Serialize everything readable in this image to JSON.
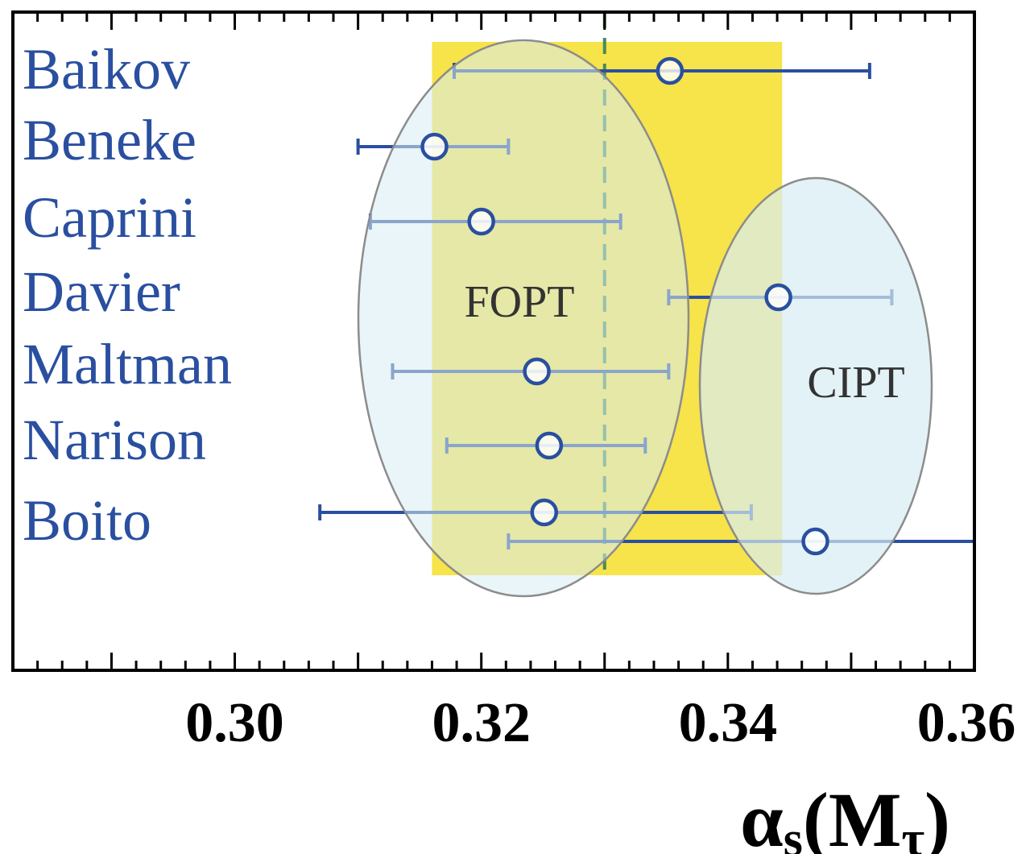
{
  "chart_data": {
    "type": "scatter",
    "title": "",
    "xlabel": "αs(Mτ)",
    "xlabel_parts": {
      "main": "α",
      "sub1": "s",
      "paren_open": "(",
      "M": "M",
      "sub2": "τ",
      "paren_close": ")"
    },
    "xlim": [
      0.282,
      0.36
    ],
    "x_ticks": [
      0.3,
      0.32,
      0.34,
      0.36
    ],
    "x_tick_labels": [
      "0.30",
      "0.32",
      "0.34",
      "0.36"
    ],
    "categories": [
      "Baikov",
      "Beneke",
      "Caprini",
      "Davier",
      "Maltman",
      "Narison",
      "Boito"
    ],
    "points": [
      {
        "name": "Baikov",
        "value": 0.3353,
        "err_low": 0.3178,
        "err_high": 0.3515
      },
      {
        "name": "Beneke",
        "value": 0.3162,
        "err_low": 0.31,
        "err_high": 0.3222
      },
      {
        "name": "Caprini",
        "value": 0.32,
        "err_low": 0.311,
        "err_high": 0.3313
      },
      {
        "name": "Davier",
        "value": 0.3441,
        "err_low": 0.3352,
        "err_high": 0.3533
      },
      {
        "name": "Maltman",
        "value": 0.3245,
        "err_low": 0.3128,
        "err_high": 0.3352
      },
      {
        "name": "Narison",
        "value": 0.3255,
        "err_low": 0.3172,
        "err_high": 0.3333
      },
      {
        "name": "Boito",
        "value": 0.3251,
        "err_low": 0.3069,
        "err_high": 0.3419
      },
      {
        "name": "Boito",
        "value": 0.3471,
        "err_low": 0.3222,
        "err_high": 0.36
      }
    ],
    "band": {
      "from": 0.316,
      "to": 0.3444
    },
    "reference_line": 0.33,
    "regions": [
      {
        "label": "FOPT"
      },
      {
        "label": "CIPT"
      }
    ],
    "colors": {
      "band": "#f7e34a",
      "marker_edge": "#2a4fa0",
      "errorbar": "#2a4fa0",
      "errorbar_over": "#5b86c0",
      "ellipse_fill": "#d7ecf2",
      "ellipse_edge": "#8c8c8c",
      "refline": "#4a8a5a",
      "label": "#2a4fa0"
    }
  }
}
